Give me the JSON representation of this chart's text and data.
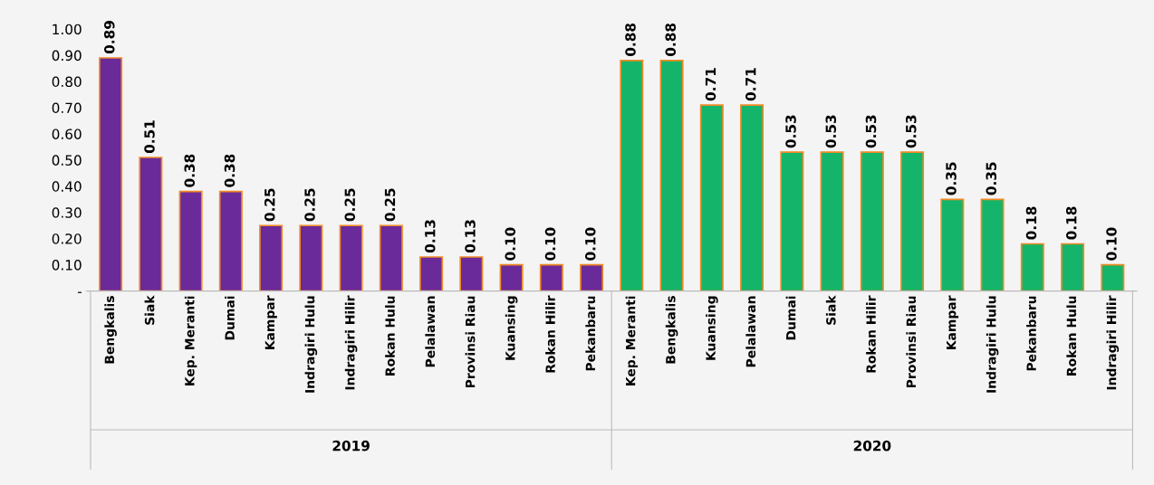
{
  "chart_data": {
    "type": "bar",
    "categories": [
      "Bengkalis",
      "Siak",
      "Kep. Meranti",
      "Dumai",
      "Kampar",
      "Indragiri Hulu",
      "Indragiri Hilir",
      "Rokan Hulu",
      "Pelalawan",
      "Provinsi Riau",
      "Kuansing",
      "Rokan Hilir",
      "Pekanbaru",
      "Kep. Meranti",
      "Bengkalis",
      "Kuansing",
      "Pelalawan",
      "Dumai",
      "Siak",
      "Rokan Hilir",
      "Provinsi Riau",
      "Kampar",
      "Indragiri Hulu",
      "Pekanbaru",
      "Rokan Hulu",
      "Indragiri Hilir"
    ],
    "values": [
      0.89,
      0.51,
      0.38,
      0.38,
      0.25,
      0.25,
      0.25,
      0.25,
      0.13,
      0.13,
      0.1,
      0.1,
      0.1,
      0.88,
      0.88,
      0.71,
      0.71,
      0.53,
      0.53,
      0.53,
      0.53,
      0.35,
      0.35,
      0.18,
      0.18,
      0.1
    ],
    "value_labels": [
      "0.89",
      "0.51",
      "0.38",
      "0.38",
      "0.25",
      "0.25",
      "0.25",
      "0.25",
      "0.13",
      "0.13",
      "0.10",
      "0.10",
      "0.10",
      "0.88",
      "0.88",
      "0.71",
      "0.71",
      "0.53",
      "0.53",
      "0.53",
      "0.53",
      "0.35",
      "0.35",
      "0.18",
      "0.18",
      "0.10"
    ],
    "colors": [
      "#6b2a9a",
      "#6b2a9a",
      "#6b2a9a",
      "#6b2a9a",
      "#6b2a9a",
      "#6b2a9a",
      "#6b2a9a",
      "#6b2a9a",
      "#6b2a9a",
      "#6b2a9a",
      "#6b2a9a",
      "#6b2a9a",
      "#6b2a9a",
      "#14b56a",
      "#14b56a",
      "#14b56a",
      "#14b56a",
      "#14b56a",
      "#14b56a",
      "#14b56a",
      "#14b56a",
      "#14b56a",
      "#14b56a",
      "#14b56a",
      "#14b56a",
      "#14b56a"
    ],
    "ylim": [
      0,
      1.0
    ],
    "yticks": [
      {
        "value": 0,
        "label": "-"
      },
      {
        "value": 0.1,
        "label": "0.10"
      },
      {
        "value": 0.2,
        "label": "0.20"
      },
      {
        "value": 0.3,
        "label": "0.30"
      },
      {
        "value": 0.4,
        "label": "0.40"
      },
      {
        "value": 0.5,
        "label": "0.50"
      },
      {
        "value": 0.6,
        "label": "0.60"
      },
      {
        "value": 0.7,
        "label": "0.70"
      },
      {
        "value": 0.8,
        "label": "0.80"
      },
      {
        "value": 0.9,
        "label": "0.90"
      },
      {
        "value": 1.0,
        "label": "1.00"
      }
    ],
    "annotations": [
      "2019",
      "2020"
    ],
    "grid": false,
    "legend": false
  }
}
